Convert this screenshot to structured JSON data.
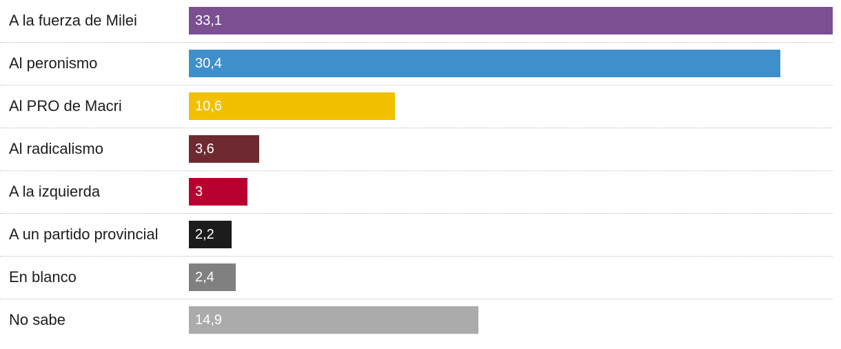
{
  "chart_data": {
    "type": "bar",
    "orientation": "horizontal",
    "title": "",
    "xlabel": "",
    "ylabel": "",
    "xlim": [
      0,
      33.1
    ],
    "grid": false,
    "categories": [
      "A la fuerza de Milei",
      "Al peronismo",
      "Al PRO de Macri",
      "Al radicalismo",
      "A la izquierda",
      "A un partido provincial",
      "En blanco",
      "No sabe"
    ],
    "values": [
      33.1,
      30.4,
      10.6,
      3.6,
      3,
      2.2,
      2.4,
      14.9
    ],
    "value_labels": [
      "33,1",
      "30,4",
      "10,6",
      "3,6",
      "3",
      "2,2",
      "2,4",
      "14,9"
    ],
    "colors": [
      "#7b4f91",
      "#3f8fca",
      "#f3c000",
      "#6e2a30",
      "#b7002f",
      "#1c1c1c",
      "#808080",
      "#ababab"
    ]
  }
}
